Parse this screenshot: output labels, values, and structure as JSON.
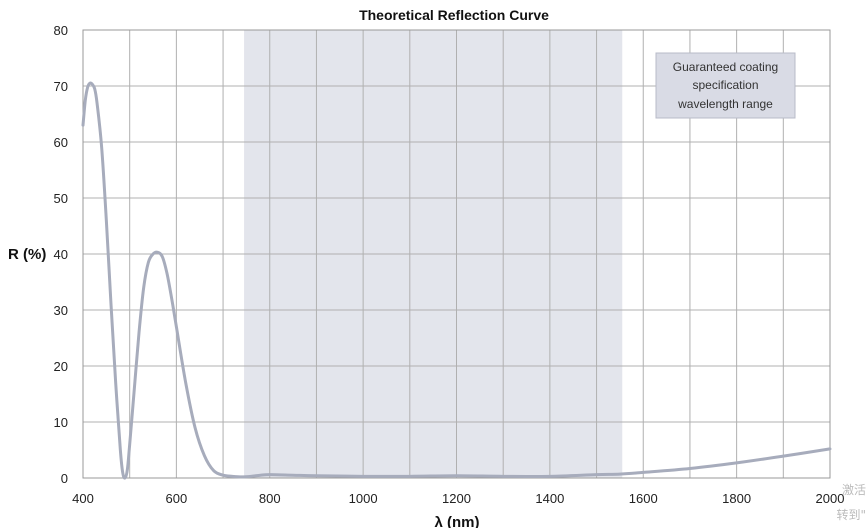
{
  "chart_data": {
    "type": "line",
    "title": "Theoretical Reflection Curve",
    "xlabel": "λ (nm)",
    "ylabel": "R (%)",
    "xlim": [
      400,
      2000
    ],
    "ylim": [
      0,
      80
    ],
    "xticks": [
      400,
      600,
      800,
      1000,
      1200,
      1400,
      1600,
      1800,
      2000
    ],
    "yticks": [
      0,
      10,
      20,
      30,
      40,
      50,
      60,
      70,
      80
    ],
    "grid": true,
    "shaded_band": {
      "x_start": 745,
      "x_end": 1555,
      "color": "#e3e5ec"
    },
    "annotation": {
      "lines": [
        "Guaranteed coating",
        "specification",
        "wavelength range"
      ]
    },
    "series": [
      {
        "color": "#a7acbc",
        "x": [
          400,
          405,
          410,
          415,
          420,
          425,
          430,
          440,
          450,
          460,
          470,
          480,
          485,
          490,
          495,
          500,
          510,
          520,
          530,
          540,
          550,
          560,
          570,
          580,
          590,
          600,
          620,
          640,
          660,
          680,
          700,
          720,
          740,
          760,
          780,
          800,
          850,
          900,
          1000,
          1100,
          1200,
          1300,
          1400,
          1500,
          1550,
          1600,
          1700,
          1800,
          1900,
          2000
        ],
        "y": [
          63,
          67.5,
          69.8,
          70.5,
          70.3,
          69.5,
          67,
          59,
          46,
          31,
          17,
          5,
          1,
          0,
          1.5,
          6,
          16,
          26,
          34,
          38.5,
          40,
          40.3,
          39.5,
          36.5,
          32,
          27,
          17,
          9,
          4,
          1.3,
          0.5,
          0.3,
          0.2,
          0.3,
          0.5,
          0.6,
          0.5,
          0.4,
          0.3,
          0.3,
          0.4,
          0.3,
          0.3,
          0.6,
          0.7,
          1,
          1.7,
          2.7,
          3.9,
          5.2
        ]
      }
    ]
  },
  "watermark": {
    "line1": "激活",
    "line2": "转到\""
  }
}
